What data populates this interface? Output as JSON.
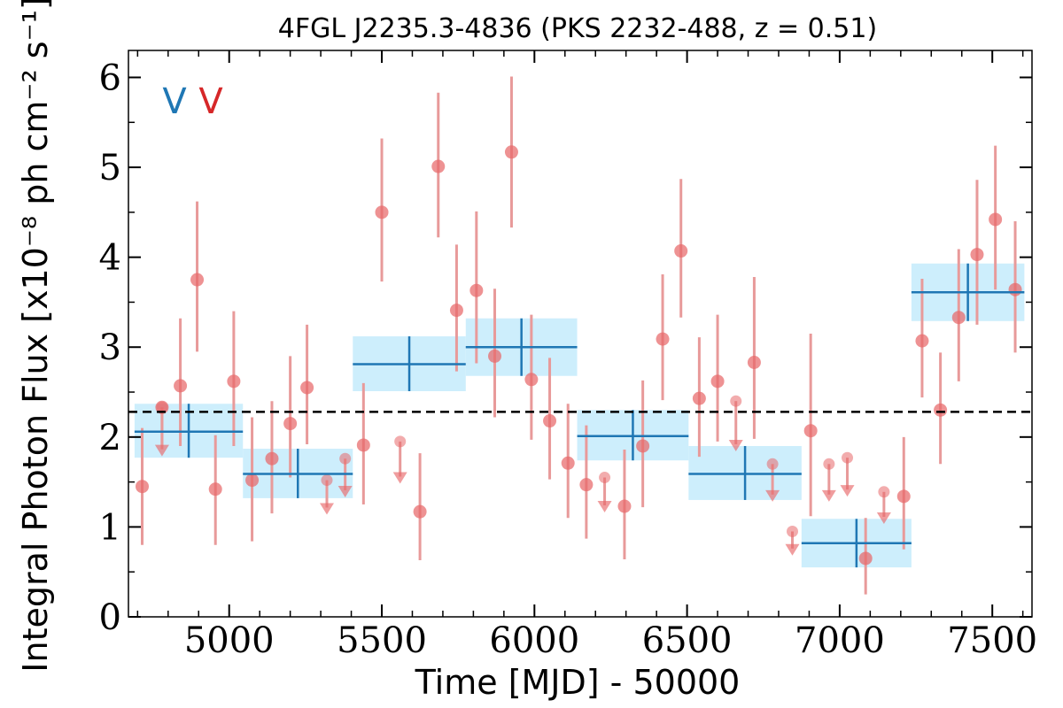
{
  "chart_data": {
    "type": "scatter",
    "title": "4FGL J2235.3-4836 (PKS 2232-488, z = 0.51)",
    "xlabel": "Time [MJD] - 50000",
    "ylabel": "Integral Photon Flux [x10⁻⁸ ph cm⁻² s⁻¹]",
    "xlim": [
      4670,
      7630
    ],
    "ylim": [
      0,
      6.3
    ],
    "xticks": [
      5000,
      5500,
      6000,
      6500,
      7000,
      7500
    ],
    "yticks": [
      0,
      1,
      2,
      3,
      4,
      5,
      6
    ],
    "grid": false,
    "markers": [
      {
        "text": "V",
        "color": "#1f77b4"
      },
      {
        "text": "V",
        "color": "#d62728"
      }
    ],
    "reference_line": {
      "y": 2.28,
      "style": "dashed",
      "color": "#000000"
    },
    "colors": {
      "points": "#e8686a",
      "errorbars": "#e89a9a",
      "bins": "#1f77b4",
      "bin_fill": "#cdeefc"
    },
    "series": [
      {
        "kind": "detections",
        "points": [
          {
            "x": 4715,
            "y": 1.45,
            "lo": 0.8,
            "hi": 2.1
          },
          {
            "x": 4780,
            "y": 2.33,
            "lo": 1.9,
            "hi": 2.33
          },
          {
            "x": 4840,
            "y": 2.57,
            "lo": 1.9,
            "hi": 3.32
          },
          {
            "x": 4895,
            "y": 3.75,
            "lo": 2.95,
            "hi": 4.62
          },
          {
            "x": 4955,
            "y": 1.42,
            "lo": 0.8,
            "hi": 2.02
          },
          {
            "x": 5015,
            "y": 2.62,
            "lo": 1.9,
            "hi": 3.4
          },
          {
            "x": 5075,
            "y": 1.52,
            "lo": 0.84,
            "hi": 2.22
          },
          {
            "x": 5140,
            "y": 1.76,
            "lo": 1.15,
            "hi": 2.4
          },
          {
            "x": 5200,
            "y": 2.15,
            "lo": 1.55,
            "hi": 2.9
          },
          {
            "x": 5255,
            "y": 2.55,
            "lo": 1.92,
            "hi": 3.25
          },
          {
            "x": 5440,
            "y": 1.91,
            "lo": 1.25,
            "hi": 2.6
          },
          {
            "x": 5500,
            "y": 4.5,
            "lo": 3.73,
            "hi": 5.32
          },
          {
            "x": 5625,
            "y": 1.17,
            "lo": 0.63,
            "hi": 1.82
          },
          {
            "x": 5685,
            "y": 5.01,
            "lo": 4.22,
            "hi": 5.83
          },
          {
            "x": 5745,
            "y": 3.41,
            "lo": 2.73,
            "hi": 4.14
          },
          {
            "x": 5810,
            "y": 3.63,
            "lo": 2.82,
            "hi": 4.51
          },
          {
            "x": 5870,
            "y": 2.9,
            "lo": 2.22,
            "hi": 3.65
          },
          {
            "x": 5925,
            "y": 5.17,
            "lo": 4.33,
            "hi": 6.01
          },
          {
            "x": 5990,
            "y": 2.64,
            "lo": 1.97,
            "hi": 3.36
          },
          {
            "x": 6050,
            "y": 2.18,
            "lo": 1.53,
            "hi": 2.88
          },
          {
            "x": 6110,
            "y": 1.71,
            "lo": 1.1,
            "hi": 2.37
          },
          {
            "x": 6170,
            "y": 1.47,
            "lo": 0.87,
            "hi": 2.13
          },
          {
            "x": 6295,
            "y": 1.23,
            "lo": 0.64,
            "hi": 1.86
          },
          {
            "x": 6355,
            "y": 1.9,
            "lo": 1.22,
            "hi": 2.63
          },
          {
            "x": 6420,
            "y": 3.09,
            "lo": 2.41,
            "hi": 3.81
          },
          {
            "x": 6480,
            "y": 4.07,
            "lo": 3.33,
            "hi": 4.87
          },
          {
            "x": 6540,
            "y": 2.43,
            "lo": 1.78,
            "hi": 3.11
          },
          {
            "x": 6600,
            "y": 2.62,
            "lo": 1.95,
            "hi": 3.36
          },
          {
            "x": 6720,
            "y": 2.83,
            "lo": 1.98,
            "hi": 3.78
          },
          {
            "x": 6905,
            "y": 2.07,
            "lo": 1.12,
            "hi": 3.15
          },
          {
            "x": 7085,
            "y": 0.65,
            "lo": 0.25,
            "hi": 1.1
          },
          {
            "x": 7210,
            "y": 1.34,
            "lo": 0.75,
            "hi": 2.0
          },
          {
            "x": 7270,
            "y": 3.07,
            "lo": 2.44,
            "hi": 3.76
          },
          {
            "x": 7330,
            "y": 2.3,
            "lo": 1.7,
            "hi": 2.94
          },
          {
            "x": 7390,
            "y": 3.33,
            "lo": 2.62,
            "hi": 4.09
          },
          {
            "x": 7450,
            "y": 4.03,
            "lo": 3.25,
            "hi": 4.86
          },
          {
            "x": 7510,
            "y": 4.42,
            "lo": 3.64,
            "hi": 5.24
          },
          {
            "x": 7575,
            "y": 3.64,
            "lo": 2.94,
            "hi": 4.4
          }
        ]
      },
      {
        "kind": "upper_limits",
        "points": [
          {
            "x": 4780,
            "y": 2.33
          },
          {
            "x": 5320,
            "y": 1.52
          },
          {
            "x": 5380,
            "y": 1.76
          },
          {
            "x": 5560,
            "y": 1.95
          },
          {
            "x": 6230,
            "y": 1.55
          },
          {
            "x": 6660,
            "y": 2.4
          },
          {
            "x": 6780,
            "y": 1.7
          },
          {
            "x": 6845,
            "y": 0.95
          },
          {
            "x": 6965,
            "y": 1.7
          },
          {
            "x": 7025,
            "y": 1.77
          },
          {
            "x": 7145,
            "y": 1.39
          }
        ]
      },
      {
        "kind": "bins",
        "bins": [
          {
            "x0": 4690,
            "x1": 5045,
            "y": 2.06,
            "lo": 1.77,
            "hi": 2.37
          },
          {
            "x0": 5045,
            "x1": 5405,
            "y": 1.59,
            "lo": 1.32,
            "hi": 1.87
          },
          {
            "x0": 5405,
            "x1": 5775,
            "y": 2.81,
            "lo": 2.51,
            "hi": 3.12
          },
          {
            "x0": 5775,
            "x1": 6140,
            "y": 3.0,
            "lo": 2.68,
            "hi": 3.32
          },
          {
            "x0": 6140,
            "x1": 6505,
            "y": 2.01,
            "lo": 1.74,
            "hi": 2.3
          },
          {
            "x0": 6505,
            "x1": 6875,
            "y": 1.59,
            "lo": 1.3,
            "hi": 1.9
          },
          {
            "x0": 6875,
            "x1": 7235,
            "y": 0.82,
            "lo": 0.55,
            "hi": 1.09
          },
          {
            "x0": 7235,
            "x1": 7605,
            "y": 3.61,
            "lo": 3.29,
            "hi": 3.93
          }
        ]
      }
    ]
  }
}
